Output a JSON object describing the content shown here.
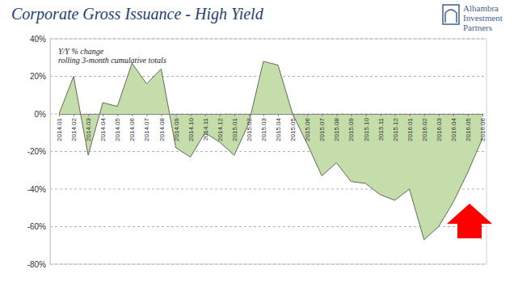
{
  "chart_data": {
    "type": "area",
    "title": "Corporate Gross Issuance - High Yield",
    "annotations": [
      "Y/Y % change",
      "rolling 3-month cumulative totals"
    ],
    "logo": [
      "Alhambra",
      "Investment",
      "Partners"
    ],
    "categories": [
      "2014.01",
      "2014.02",
      "2014.03",
      "2014.04",
      "2014.05",
      "2014.06",
      "2014.07",
      "2014.08",
      "2014.09",
      "2014.10",
      "2014.11",
      "2014.12",
      "2015.01",
      "2015.02",
      "2015.03",
      "2015.04",
      "2015.05",
      "2015.06",
      "2015.07",
      "2015.08",
      "2015.09",
      "2015.10",
      "2015.11",
      "2015.12",
      "2016.01",
      "2016.02",
      "2016.03",
      "2016.04",
      "2016.05",
      "2016.06"
    ],
    "values": [
      0,
      20,
      -22,
      6,
      4,
      27,
      16,
      24,
      -18,
      -23,
      -10,
      -15,
      -22,
      -5,
      28,
      26,
      0,
      -16,
      -33,
      -26,
      -36,
      -37,
      -43,
      -46,
      -40,
      -67,
      -60,
      -47,
      -31,
      -13
    ],
    "color": "#c5dcab",
    "ylim": [
      -80,
      40
    ],
    "yticks": [
      {
        "value": -80,
        "label": "-80%"
      },
      {
        "value": -60,
        "label": "-60%"
      },
      {
        "value": -40,
        "label": "-40%"
      },
      {
        "value": -20,
        "label": "-20%"
      },
      {
        "value": 0,
        "label": "0%"
      },
      {
        "value": 20,
        "label": "20%"
      },
      {
        "value": 40,
        "label": "40%"
      }
    ],
    "grid": true
  }
}
